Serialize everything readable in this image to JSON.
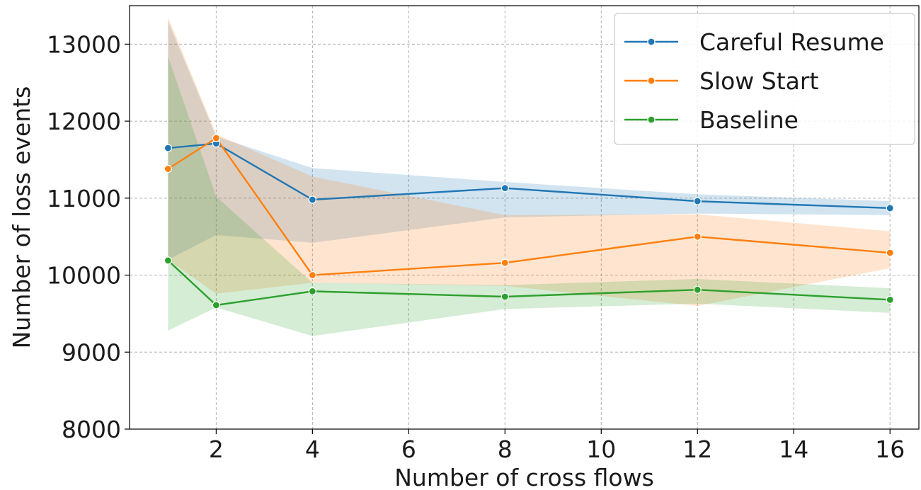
{
  "chart_data": {
    "type": "line",
    "title": "",
    "xlabel": "Number of cross flows",
    "ylabel": "Number of loss events",
    "x": [
      1,
      2,
      4,
      8,
      12,
      16
    ],
    "xlim": [
      0.2,
      16.6
    ],
    "ylim": [
      8000,
      13500
    ],
    "xticks": [
      2,
      4,
      6,
      8,
      10,
      12,
      14,
      16
    ],
    "yticks": [
      8000,
      9000,
      10000,
      11000,
      12000,
      13000
    ],
    "grid": true,
    "legend_position": "top-right",
    "series": [
      {
        "name": "Careful Resume",
        "color": "#1f77b4",
        "values": [
          11650,
          11710,
          10980,
          11130,
          10960,
          10870
        ],
        "ci_low": [
          10200,
          10520,
          10420,
          10750,
          10800,
          10780
        ],
        "ci_high": [
          13300,
          11800,
          11390,
          11210,
          11050,
          10960
        ]
      },
      {
        "name": "Slow Start",
        "color": "#ff7f0e",
        "values": [
          11380,
          11780,
          10000,
          10160,
          10500,
          10290
        ],
        "ci_low": [
          10200,
          9760,
          9900,
          9860,
          9600,
          10090
        ],
        "ci_high": [
          13350,
          11830,
          11280,
          10780,
          10790,
          10570
        ]
      },
      {
        "name": "Baseline",
        "color": "#2ca02c",
        "values": [
          10190,
          9610,
          9790,
          9720,
          9810,
          9680
        ],
        "ci_low": [
          9280,
          9580,
          9210,
          9560,
          9630,
          9510
        ],
        "ci_high": [
          12840,
          11020,
          9900,
          9870,
          9950,
          9830
        ]
      }
    ]
  }
}
